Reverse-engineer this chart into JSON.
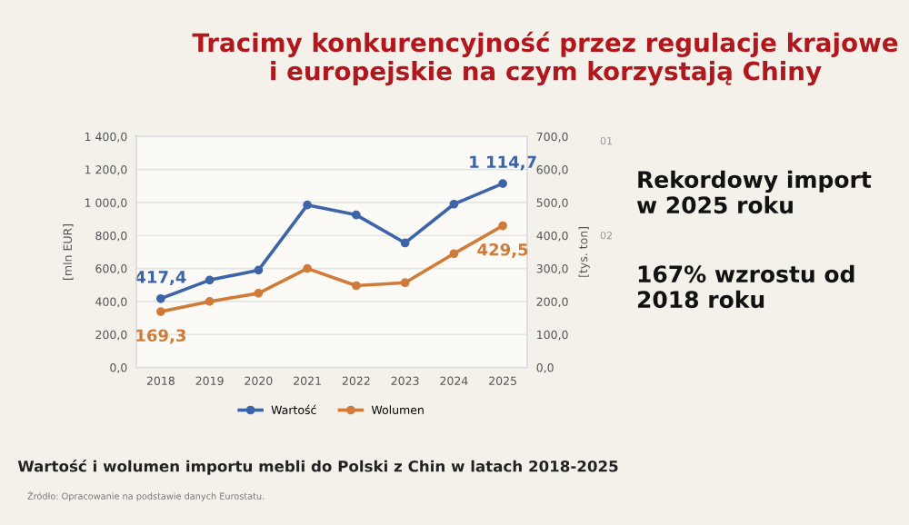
{
  "chart_data": {
    "type": "line",
    "title": "Tracimy konkurencyjność przez regulacje krajowe\ni europejskie na czym korzystają Chiny",
    "subtitle": "Wartość i wolumen importu mebli do Polski z Chin w latach 2018-2025",
    "ylabel": "[mln EUR]",
    "y2label": "[tys. ton]",
    "categories": [
      "2018",
      "2019",
      "2020",
      "2021",
      "2022",
      "2023",
      "2024",
      "2025"
    ],
    "series": [
      {
        "name": "Wartość",
        "color": "#3d64a8",
        "values": [
          417.4,
          530,
          590,
          985,
          925,
          755,
          990,
          1114.7
        ],
        "value_labels": [
          "417,4",
          null,
          null,
          null,
          null,
          null,
          null,
          "1 114,7"
        ]
      },
      {
        "name": "Wolumen",
        "color": "#d07b38",
        "axis": "y2",
        "values": [
          169.3,
          200,
          225,
          300,
          248,
          257,
          345,
          429.5
        ],
        "value_labels": [
          "169,3",
          null,
          null,
          null,
          null,
          null,
          null,
          "429,5"
        ]
      }
    ],
    "ylim": [
      0,
      1400
    ],
    "yticks": [
      {
        "value": 0,
        "label": "0,0"
      },
      {
        "value": 200,
        "label": "200,0"
      },
      {
        "value": 400,
        "label": "400,0"
      },
      {
        "value": 600,
        "label": "600,0"
      },
      {
        "value": 800,
        "label": "800,0"
      },
      {
        "value": 1000,
        "label": "1 000,0"
      },
      {
        "value": 1200,
        "label": "1 200,0"
      },
      {
        "value": 1400,
        "label": "1 400,0"
      }
    ],
    "y2lim": [
      0,
      700
    ],
    "y2ticks": [
      {
        "value": 0,
        "label": "0,0"
      },
      {
        "value": 100,
        "label": "100,0"
      },
      {
        "value": 200,
        "label": "200,0"
      },
      {
        "value": 300,
        "label": "300,0"
      },
      {
        "value": 400,
        "label": "400,0"
      },
      {
        "value": 500,
        "label": "500,0"
      },
      {
        "value": 600,
        "label": "600,0"
      },
      {
        "value": 700,
        "label": "700,0"
      }
    ],
    "grid": "y",
    "legend": "bottom",
    "marker": "circle",
    "line_style": "solid",
    "annotations": [
      "01",
      "Rekordowy import\nw 2025 roku",
      "02",
      "167% wzrostu od\n2018 roku",
      "Źródło: Opracowanie na podstawie danych Eurostatu."
    ]
  }
}
